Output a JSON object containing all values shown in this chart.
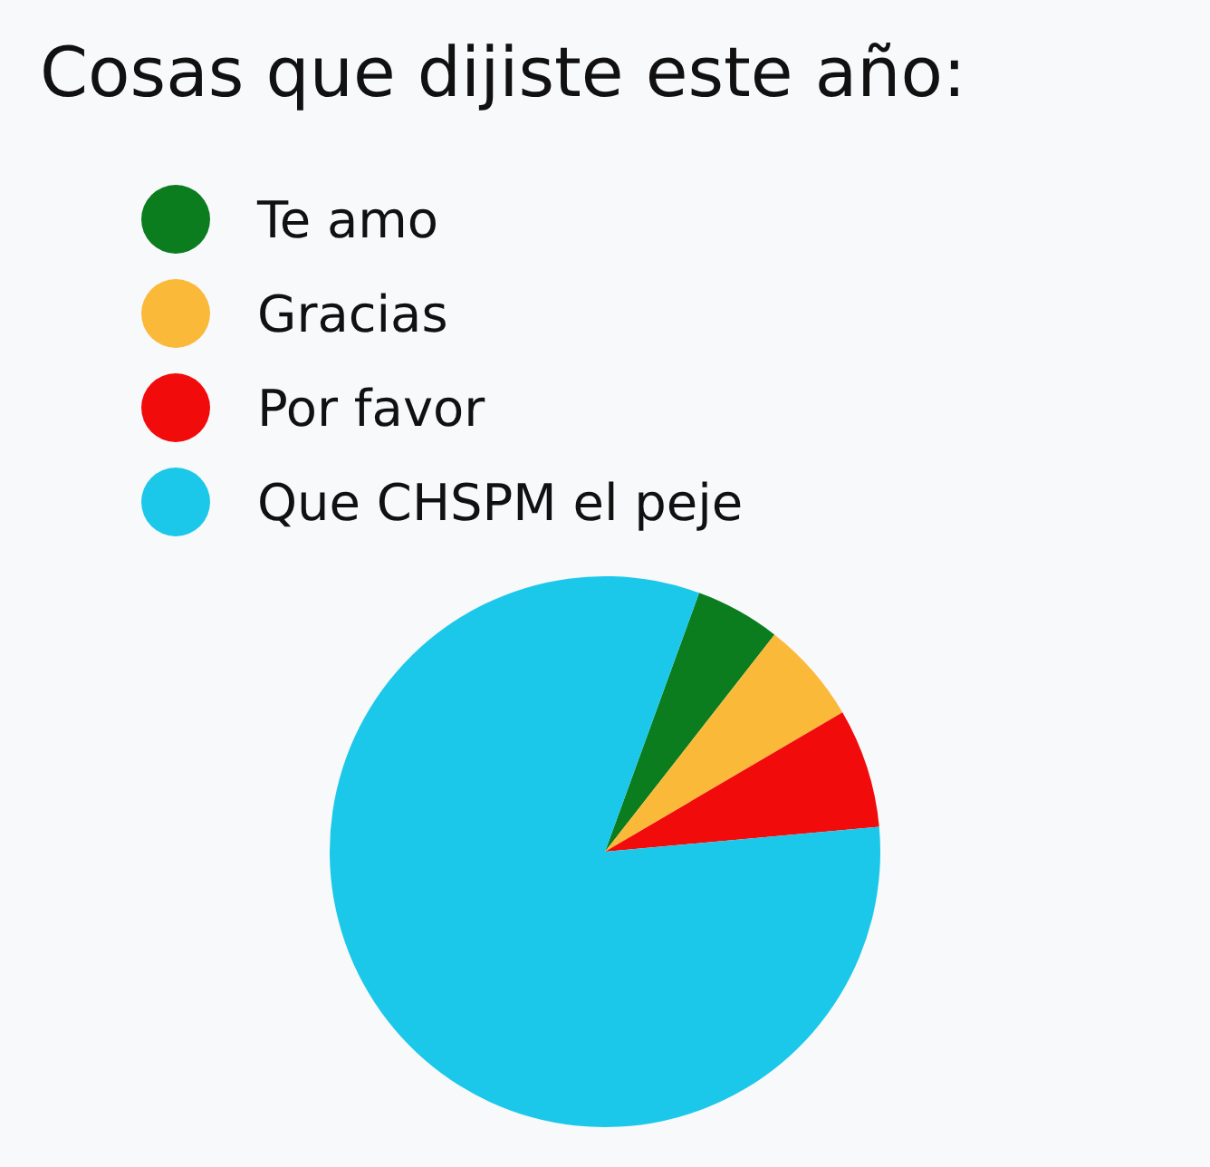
{
  "chart_data": {
    "type": "pie",
    "title": "Cosas que dijiste este año:",
    "categories": [
      "Te amo",
      "Gracias",
      "Por favor",
      "Que CHSPM el peje"
    ],
    "values": [
      5,
      6,
      7,
      82
    ],
    "colors": [
      "#0b7d1f",
      "#fbb93a",
      "#f20b0b",
      "#1cc8ea"
    ],
    "legend": "top left"
  }
}
